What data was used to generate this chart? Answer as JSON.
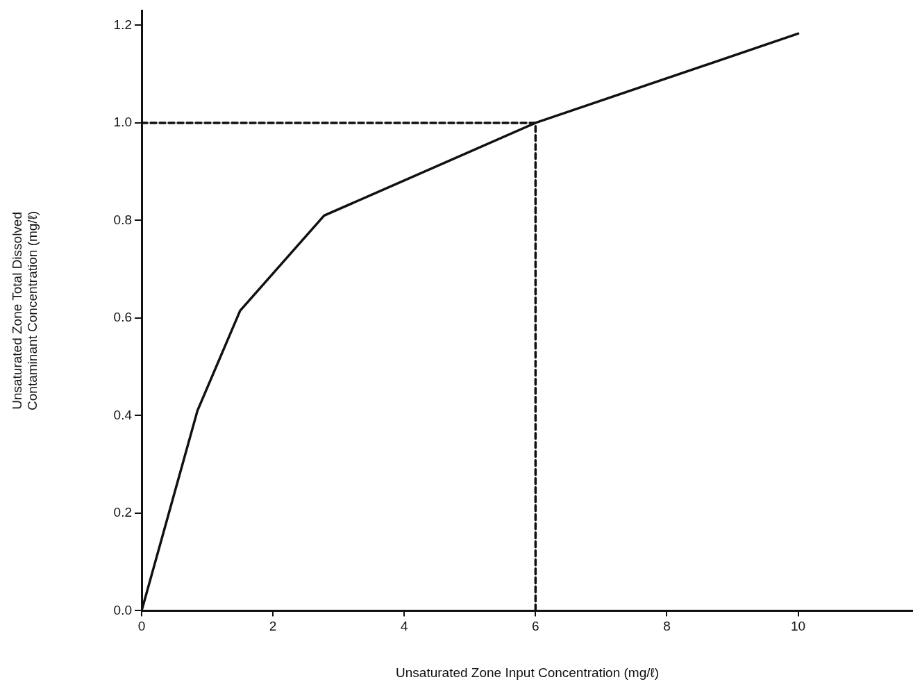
{
  "chart_data": {
    "type": "line",
    "xlabel": "Unsaturated Zone Input Concentration (mg/ℓ)",
    "ylabel": [
      "Unsaturated Zone Total Dissolved",
      "Contaminant Concentration (mg/ℓ)"
    ],
    "xlim": [
      0,
      11.75
    ],
    "xticks": [
      0,
      2,
      4,
      6,
      8,
      10
    ],
    "ylim": [
      0,
      1.23
    ],
    "yticks": [
      {
        "value": 0,
        "label": "0.0"
      },
      0.2,
      0.4,
      0.6,
      0.8,
      {
        "value": 1,
        "label": "1.0"
      },
      1.2
    ],
    "grid": false,
    "legend": false,
    "marker": "none",
    "series": [
      {
        "color": "#111111",
        "line_style": "solid",
        "x": [
          0,
          0.85,
          1.5,
          2.78,
          6,
          10
        ],
        "values": [
          0,
          0.41,
          0.615,
          0.81,
          1.0,
          1.183
        ]
      },
      {
        "color": "#111111",
        "line_style": "dashed",
        "x": [
          0,
          6,
          6
        ],
        "values": [
          1.0,
          1.0,
          0
        ]
      }
    ]
  }
}
